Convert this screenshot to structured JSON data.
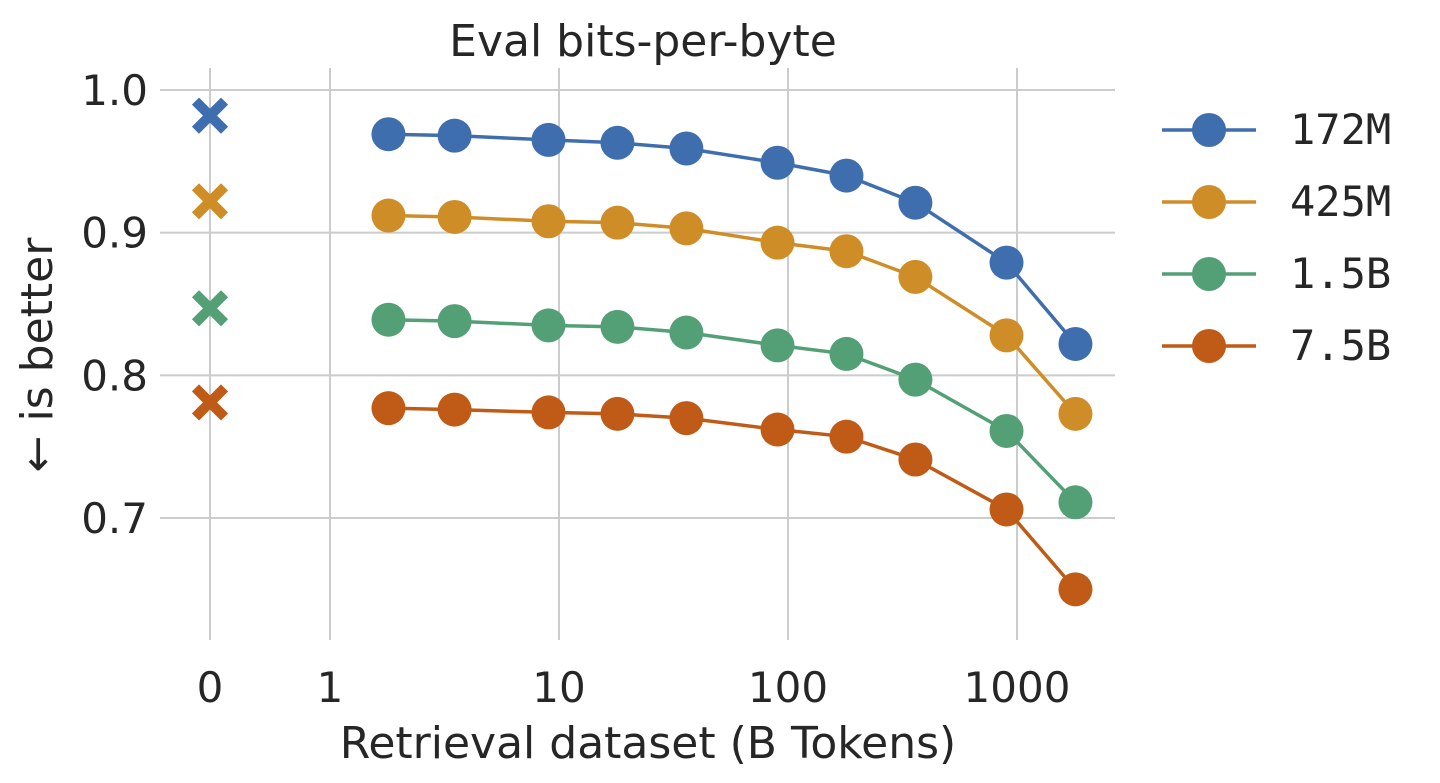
{
  "chart_data": {
    "type": "line",
    "title": "Eval bits-per-byte",
    "xlabel": "Retrieval dataset (B Tokens)",
    "ylabel": "← is better",
    "x_scale": "log",
    "x_ticks": [
      "0",
      "1",
      "10",
      "100",
      "1000"
    ],
    "y_ticks": [
      "1.0",
      "0.9",
      "0.8",
      "0.7"
    ],
    "ylim": [
      0.63,
      1.02
    ],
    "grid": true,
    "legend_position": "right",
    "x": [
      1.8,
      3.5,
      9,
      18,
      36,
      90,
      180,
      360,
      900,
      1800
    ],
    "series": [
      {
        "name": "172M",
        "color": "#3f6eaf",
        "baseline_at_0": 0.982,
        "values": [
          0.969,
          0.968,
          0.965,
          0.963,
          0.959,
          0.949,
          0.94,
          0.921,
          0.879,
          0.822
        ]
      },
      {
        "name": "425M",
        "color": "#cf8d27",
        "baseline_at_0": 0.922,
        "values": [
          0.912,
          0.911,
          0.908,
          0.907,
          0.903,
          0.893,
          0.887,
          0.869,
          0.828,
          0.773
        ]
      },
      {
        "name": "1.5B",
        "color": "#54a076",
        "baseline_at_0": 0.847,
        "values": [
          0.839,
          0.838,
          0.835,
          0.834,
          0.83,
          0.821,
          0.815,
          0.797,
          0.761,
          0.711
        ]
      },
      {
        "name": "7.5B",
        "color": "#bf5b17",
        "baseline_at_0": 0.781,
        "values": [
          0.777,
          0.776,
          0.774,
          0.773,
          0.77,
          0.762,
          0.757,
          0.741,
          0.706,
          0.65
        ]
      }
    ]
  }
}
